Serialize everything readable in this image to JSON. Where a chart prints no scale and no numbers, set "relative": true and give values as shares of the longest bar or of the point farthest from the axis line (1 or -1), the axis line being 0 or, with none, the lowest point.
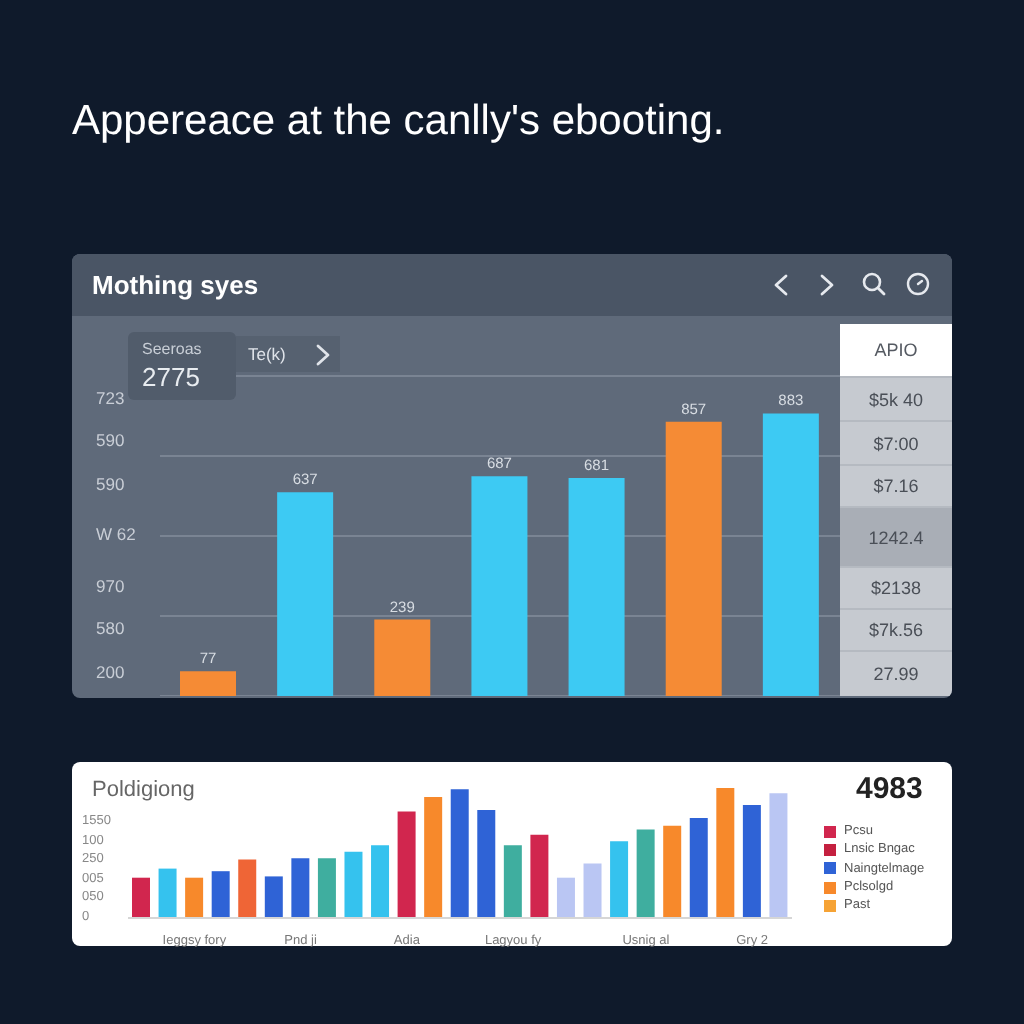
{
  "chart_data": [
    {
      "type": "bar",
      "title": "Appereace at the canlly's ebooting.",
      "subtitle": "Mothing syes",
      "categories": [
        null,
        null,
        null,
        null,
        null,
        null,
        null
      ],
      "values": [
        77,
        637,
        239,
        687,
        681,
        857,
        883
      ],
      "colors": [
        "#f58b35",
        "#3dcaf3",
        "#f58b35",
        "#3dcaf3",
        "#3dcaf3",
        "#f58b35",
        "#3dcaf3"
      ],
      "data_labels": true,
      "grid": "y",
      "tick_labels": false,
      "annotations": [
        "Seeroas",
        "2775",
        "Te(k)",
        "APIO",
        "$5k 40",
        "$7:00",
        "$7.16",
        "1242.4",
        "$2138",
        "$7k.56",
        "27.99",
        "723",
        "590",
        "590",
        "W 62",
        "970",
        "580",
        "200"
      ]
    },
    {
      "type": "bar",
      "title": "Poldigiong",
      "stacked": true,
      "relative": true,
      "legend": "right",
      "annotations": [
        "4983",
        "1550",
        "100",
        "250",
        "005",
        "050",
        "0"
      ],
      "categories": [
        null,
        null,
        "Ieggsy fory",
        null,
        null,
        null,
        "Pnd ji",
        null,
        null,
        null,
        "Adia",
        null,
        null,
        null,
        "Lagyou fy",
        null,
        null,
        null,
        null,
        "Usnig al",
        null,
        null,
        null,
        "Gry 2",
        null
      ],
      "series": [
        {
          "name": "Pcsu",
          "color": "#d1264e",
          "values": [
            0.31,
            null,
            null,
            null,
            null,
            null,
            null,
            null,
            null,
            null,
            0.82,
            null,
            null,
            null,
            null,
            0.64,
            null,
            null,
            null,
            null,
            null,
            null,
            null,
            null,
            null
          ]
        },
        {
          "name": "Lnsic Bngac",
          "color": "#c4203f",
          "values": [
            null,
            null,
            null,
            null,
            null,
            null,
            null,
            null,
            null,
            null,
            null,
            null,
            null,
            null,
            null,
            null,
            null,
            null,
            null,
            null,
            null,
            null,
            null,
            null,
            null
          ]
        },
        {
          "name": "Naingtelmage",
          "color": "#2f63d6",
          "values": [
            null,
            null,
            null,
            0.36,
            null,
            0.32,
            0.46,
            null,
            null,
            null,
            null,
            null,
            0.99,
            0.83,
            null,
            null,
            null,
            null,
            null,
            null,
            null,
            0.77,
            null,
            0.87,
            null
          ]
        },
        {
          "name": "Pclsolgd",
          "color": "#f7892b",
          "values": [
            null,
            null,
            0.31,
            null,
            null,
            null,
            null,
            null,
            null,
            null,
            null,
            0.93,
            null,
            null,
            null,
            null,
            null,
            null,
            null,
            null,
            0.71,
            null,
            1,
            null,
            null
          ]
        },
        {
          "name": "Past",
          "color": "#f6a335",
          "values": [
            null,
            null,
            null,
            null,
            null,
            null,
            null,
            null,
            null,
            null,
            null,
            null,
            null,
            null,
            null,
            null,
            null,
            null,
            null,
            null,
            null,
            null,
            null,
            null,
            null
          ]
        },
        {
          "color": "#35c2ee",
          "values": [
            null,
            0.38,
            null,
            null,
            null,
            null,
            null,
            null,
            0.51,
            0.56,
            null,
            null,
            null,
            null,
            null,
            null,
            null,
            null,
            0.59,
            null,
            null,
            null,
            null,
            null,
            null
          ]
        },
        {
          "color": "#3fae9f",
          "values": [
            null,
            null,
            null,
            null,
            null,
            null,
            null,
            0.46,
            null,
            null,
            null,
            null,
            null,
            null,
            0.56,
            null,
            null,
            null,
            null,
            0.68,
            null,
            null,
            null,
            null,
            null
          ]
        },
        {
          "color": "#bac6f3",
          "values": [
            null,
            null,
            null,
            null,
            null,
            null,
            null,
            null,
            null,
            null,
            null,
            null,
            null,
            null,
            null,
            null,
            0.31,
            0.42,
            null,
            null,
            null,
            null,
            null,
            null,
            0.96
          ]
        },
        {
          "color": "#ef6536",
          "values": [
            null,
            null,
            null,
            null,
            0.45,
            null,
            null,
            null,
            null,
            null,
            null,
            null,
            null,
            null,
            null,
            null,
            null,
            null,
            null,
            null,
            null,
            null,
            null,
            null,
            null
          ]
        }
      ]
    }
  ]
}
